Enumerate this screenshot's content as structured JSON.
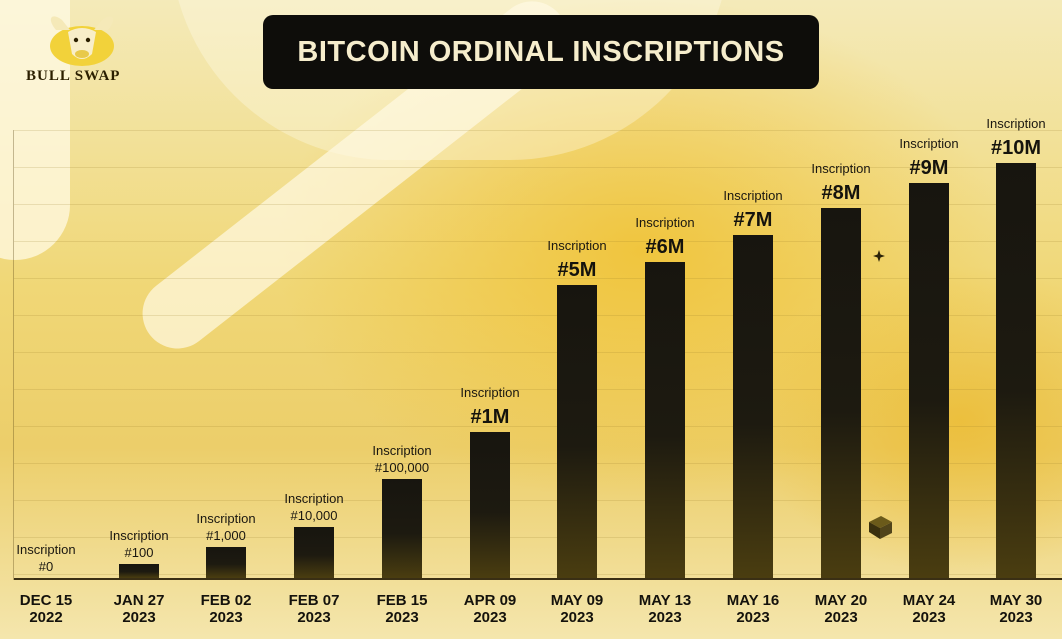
{
  "logo": {
    "text": "BULL SWAP",
    "icon": "bull-head-icon"
  },
  "colors": {
    "bar": "#17150f",
    "title_bg": "#0e0d0a",
    "title_text": "#f6edcc",
    "background": "#f0d776"
  },
  "chart_data": {
    "type": "bar",
    "title": "BITCOIN ORDINAL INSCRIPTIONS",
    "categories": [
      [
        "DEC 15",
        "2022"
      ],
      [
        "JAN 27",
        "2023"
      ],
      [
        "FEB 02",
        "2023"
      ],
      [
        "FEB 07",
        "2023"
      ],
      [
        "FEB 15",
        "2023"
      ],
      [
        "APR 09",
        "2023"
      ],
      [
        "MAY 09",
        "2023"
      ],
      [
        "MAY 13",
        "2023"
      ],
      [
        "MAY 16",
        "2023"
      ],
      [
        "MAY 20",
        "2023"
      ],
      [
        "MAY 24",
        "2023"
      ],
      [
        "MAY 30",
        "2023"
      ]
    ],
    "values": [
      0,
      100,
      1000,
      10000,
      100000,
      1000000,
      5000000,
      6000000,
      7000000,
      8000000,
      9000000,
      10000000
    ],
    "annotations": [
      {
        "line1": "Inscription",
        "line2": "#0",
        "emphasis": false
      },
      {
        "line1": "Inscription",
        "line2": "#100",
        "emphasis": false
      },
      {
        "line1": "Inscription",
        "line2": "#1,000",
        "emphasis": false
      },
      {
        "line1": "Inscription",
        "line2": "#10,000",
        "emphasis": false
      },
      {
        "line1": "Inscription",
        "line2": "#100,000",
        "emphasis": false
      },
      {
        "line1": "Inscription",
        "line2": "#1M",
        "emphasis": true
      },
      {
        "line1": "Inscription",
        "line2": "#5M",
        "emphasis": true
      },
      {
        "line1": "Inscription",
        "line2": "#6M",
        "emphasis": true
      },
      {
        "line1": "Inscription",
        "line2": "#7M",
        "emphasis": true
      },
      {
        "line1": "Inscription",
        "line2": "#8M",
        "emphasis": true
      },
      {
        "line1": "Inscription",
        "line2": "#9M",
        "emphasis": true
      },
      {
        "line1": "Inscription",
        "line2": "#10M",
        "emphasis": true
      }
    ],
    "xlabel": "",
    "ylabel": "",
    "y_axis_note": "non-linear scale; bar heights are illustrative",
    "grid": true
  }
}
